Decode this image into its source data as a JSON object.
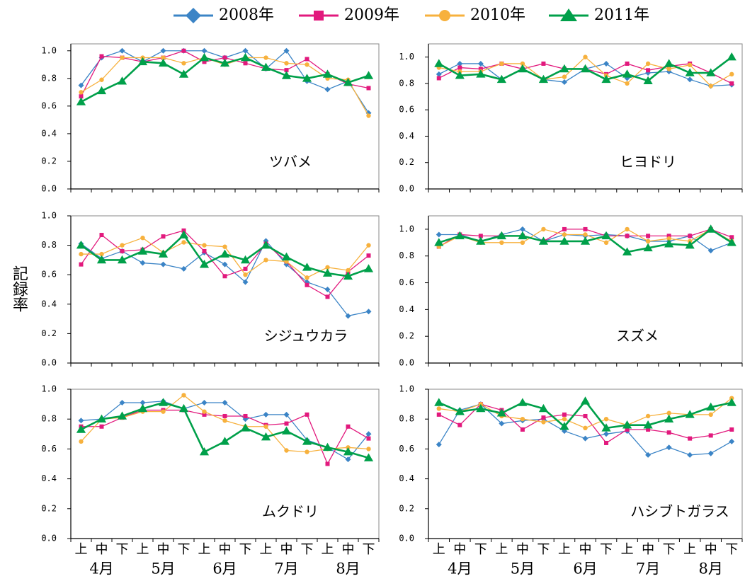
{
  "chart_data": {
    "type": "line",
    "y_label": "記録率",
    "categories": [
      "上",
      "中",
      "下",
      "上",
      "中",
      "下",
      "上",
      "中",
      "下",
      "上",
      "中",
      "下",
      "上",
      "中",
      "下"
    ],
    "groups": [
      "4月",
      "5月",
      "6月",
      "7月",
      "8月"
    ],
    "series": [
      {
        "name": "2008年",
        "color": "#3b84c6",
        "marker": "diamond"
      },
      {
        "name": "2009年",
        "color": "#e2197d",
        "marker": "square"
      },
      {
        "name": "2010年",
        "color": "#f7b13d",
        "marker": "circle"
      },
      {
        "name": "2011年",
        "color": "#00a04a",
        "marker": "triangle"
      }
    ],
    "panels": [
      {
        "label": "ツバメ",
        "ylim": [
          0,
          1.05
        ],
        "yticks": [
          {
            "value": 0,
            "label": "0.0"
          },
          0.2,
          0.4,
          0.6,
          0.8,
          {
            "value": 1,
            "label": "1.0"
          }
        ],
        "series": [
          {
            "values": [
              0.75,
              0.95,
              1.0,
              0.92,
              1.0,
              1.0,
              1.0,
              0.95,
              1.0,
              0.87,
              1.0,
              0.78,
              0.72,
              0.78,
              0.55
            ]
          },
          {
            "values": [
              0.67,
              0.96,
              0.95,
              0.92,
              0.95,
              1.0,
              0.92,
              0.95,
              0.91,
              0.87,
              0.86,
              0.94,
              0.83,
              0.76,
              0.73
            ]
          },
          {
            "values": [
              0.7,
              0.79,
              0.95,
              0.95,
              0.95,
              0.91,
              0.95,
              0.9,
              0.95,
              0.95,
              0.91,
              0.9,
              0.8,
              0.79,
              0.53
            ]
          },
          {
            "values": [
              0.63,
              0.71,
              0.78,
              0.92,
              0.91,
              0.83,
              0.95,
              0.91,
              0.95,
              0.88,
              0.82,
              0.8,
              0.83,
              0.77,
              0.82
            ]
          }
        ]
      },
      {
        "label": "ヒヨドリ",
        "ylim": [
          0,
          1.1
        ],
        "yticks": [
          {
            "value": 0,
            "label": "0.0"
          },
          0.2,
          0.4,
          0.6,
          0.8,
          {
            "value": 1,
            "label": "1.0"
          }
        ],
        "series": [
          {
            "values": [
              0.87,
              0.95,
              0.95,
              0.83,
              0.91,
              0.83,
              0.81,
              0.91,
              0.95,
              0.84,
              0.88,
              0.89,
              0.83,
              0.78,
              0.79
            ]
          },
          {
            "values": [
              0.84,
              0.92,
              0.91,
              0.95,
              0.91,
              0.95,
              0.91,
              0.91,
              0.87,
              0.95,
              0.9,
              0.93,
              0.95,
              0.88,
              0.8
            ]
          },
          {
            "values": [
              0.92,
              0.89,
              0.89,
              0.95,
              0.95,
              0.83,
              0.85,
              1.0,
              0.86,
              0.8,
              0.95,
              0.91,
              0.94,
              0.78,
              0.87
            ]
          },
          {
            "values": [
              0.95,
              0.86,
              0.87,
              0.83,
              0.91,
              0.83,
              0.91,
              0.91,
              0.83,
              0.87,
              0.82,
              0.95,
              0.88,
              0.88,
              1.0
            ]
          }
        ]
      },
      {
        "label": "シジュウカラ",
        "ylim": [
          0,
          1.0
        ],
        "yticks": [
          {
            "value": 0,
            "label": "0.0"
          },
          0.2,
          0.4,
          0.6,
          0.8,
          {
            "value": 1,
            "label": "1.0"
          }
        ],
        "series": [
          {
            "values": [
              0.81,
              0.71,
              0.76,
              0.68,
              0.67,
              0.64,
              0.75,
              0.67,
              0.55,
              0.83,
              0.67,
              0.55,
              0.5,
              0.32,
              0.35
            ]
          },
          {
            "values": [
              0.67,
              0.87,
              0.76,
              0.77,
              0.86,
              0.9,
              0.76,
              0.59,
              0.64,
              0.81,
              0.69,
              0.53,
              0.45,
              0.62,
              0.73
            ]
          },
          {
            "values": [
              0.74,
              0.74,
              0.8,
              0.85,
              0.75,
              0.82,
              0.8,
              0.79,
              0.6,
              0.7,
              0.69,
              0.58,
              0.65,
              0.63,
              0.8
            ]
          },
          {
            "values": [
              0.8,
              0.7,
              0.7,
              0.76,
              0.74,
              0.87,
              0.67,
              0.74,
              0.7,
              0.8,
              0.72,
              0.65,
              0.61,
              0.59,
              0.64
            ]
          }
        ]
      },
      {
        "label": "スズメ",
        "ylim": [
          0,
          1.1
        ],
        "yticks": [
          {
            "value": 0,
            "label": "0.0"
          },
          0.2,
          0.4,
          0.6,
          0.8,
          {
            "value": 1,
            "label": "1.0"
          }
        ],
        "series": [
          {
            "values": [
              0.96,
              0.96,
              0.91,
              0.96,
              1.0,
              0.91,
              0.96,
              0.95,
              0.96,
              0.95,
              0.91,
              0.91,
              0.95,
              0.84,
              0.9
            ]
          },
          {
            "values": [
              0.87,
              0.96,
              0.95,
              0.95,
              0.95,
              0.91,
              1.0,
              1.0,
              0.95,
              0.95,
              0.95,
              0.95,
              0.95,
              1.0,
              0.94
            ]
          },
          {
            "values": [
              0.87,
              0.95,
              0.9,
              0.9,
              0.9,
              1.0,
              0.96,
              0.96,
              0.9,
              1.0,
              0.91,
              0.93,
              0.91,
              1.0,
              0.91
            ]
          },
          {
            "values": [
              0.9,
              0.95,
              0.91,
              0.95,
              0.95,
              0.91,
              0.91,
              0.91,
              0.95,
              0.83,
              0.86,
              0.89,
              0.88,
              1.0,
              0.9
            ]
          }
        ]
      },
      {
        "label": "ムクドリ",
        "ylim": [
          0,
          1.0
        ],
        "yticks": [
          {
            "value": 0,
            "label": "0.0"
          },
          0.2,
          0.4,
          0.6,
          0.8,
          {
            "value": 1,
            "label": "1.0"
          }
        ],
        "series": [
          {
            "values": [
              0.79,
              0.8,
              0.91,
              0.91,
              0.92,
              0.87,
              0.91,
              0.91,
              0.8,
              0.83,
              0.83,
              0.66,
              0.61,
              0.53,
              0.7
            ]
          },
          {
            "values": [
              0.75,
              0.75,
              0.81,
              0.86,
              0.86,
              0.86,
              0.83,
              0.82,
              0.82,
              0.76,
              0.77,
              0.83,
              0.5,
              0.75,
              0.67
            ]
          },
          {
            "values": [
              0.65,
              0.8,
              0.81,
              0.85,
              0.85,
              0.96,
              0.85,
              0.79,
              0.75,
              0.75,
              0.59,
              0.58,
              0.6,
              0.61,
              0.6
            ]
          },
          {
            "values": [
              0.73,
              0.8,
              0.82,
              0.87,
              0.91,
              0.87,
              0.58,
              0.65,
              0.74,
              0.68,
              0.72,
              0.65,
              0.61,
              0.58,
              0.54
            ]
          }
        ]
      },
      {
        "label": "ハシブトガラス",
        "ylim": [
          0,
          1.0
        ],
        "yticks": [
          {
            "value": 0,
            "label": "0.0"
          },
          0.2,
          0.4,
          0.6,
          0.8,
          {
            "value": 1,
            "label": "1.0"
          }
        ],
        "series": [
          {
            "values": [
              0.63,
              0.86,
              0.9,
              0.77,
              0.79,
              0.8,
              0.72,
              0.67,
              0.7,
              0.72,
              0.56,
              0.61,
              0.56,
              0.57,
              0.65
            ]
          },
          {
            "values": [
              0.83,
              0.76,
              0.9,
              0.86,
              0.73,
              0.81,
              0.83,
              0.82,
              0.64,
              0.73,
              0.73,
              0.71,
              0.67,
              0.69,
              0.73
            ]
          },
          {
            "values": [
              0.87,
              0.85,
              0.9,
              0.82,
              0.8,
              0.78,
              0.8,
              0.74,
              0.8,
              0.76,
              0.82,
              0.84,
              0.83,
              0.83,
              0.94
            ]
          },
          {
            "values": [
              0.91,
              0.85,
              0.87,
              0.84,
              0.91,
              0.87,
              0.75,
              0.92,
              0.74,
              0.76,
              0.76,
              0.8,
              0.83,
              0.88,
              0.91
            ]
          }
        ]
      }
    ]
  }
}
